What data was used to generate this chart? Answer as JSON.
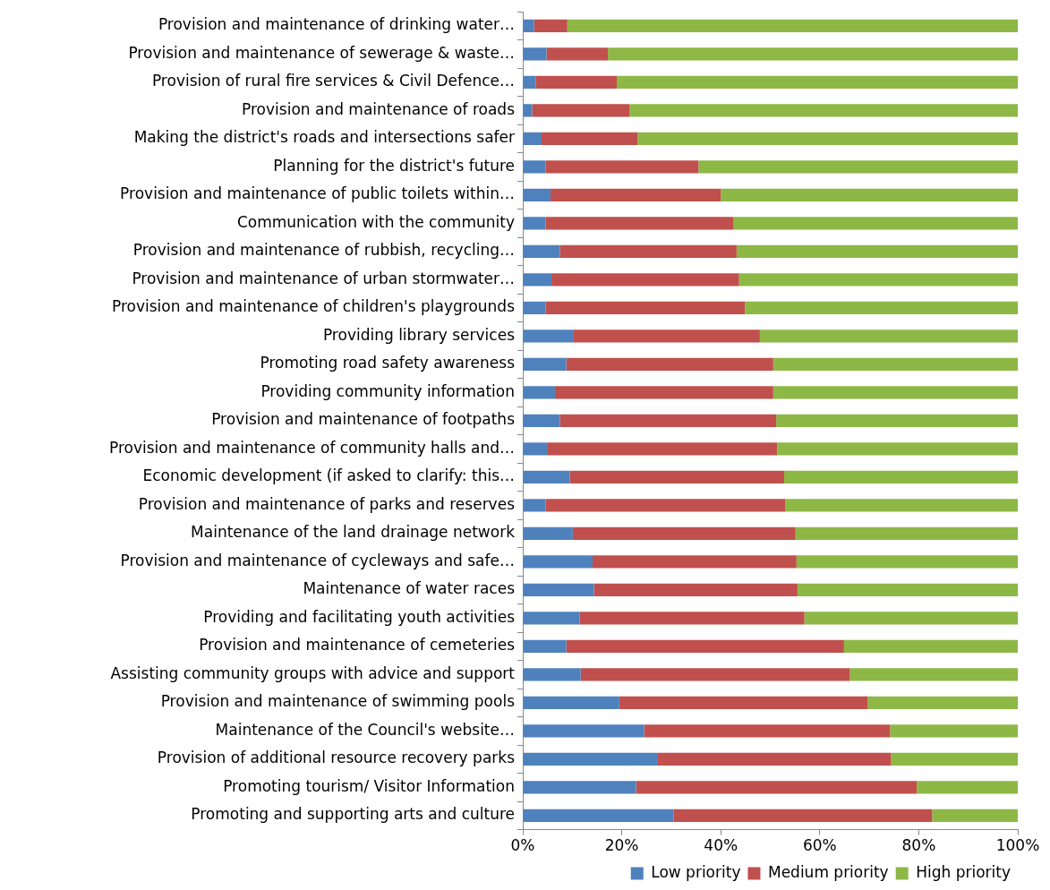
{
  "chart_data": {
    "type": "bar",
    "orientation": "horizontal",
    "stacked": true,
    "legend": "bottom right",
    "grid": false,
    "categories": [
      "Provision and maintenance of drinking water…",
      "Provision and maintenance of sewerage & waste…",
      "Provision of rural fire services & Civil Defence…",
      "Provision and maintenance of roads",
      "Making the district's roads and intersections safer",
      "Planning for the district's future",
      "Provision and maintenance of public toilets within…",
      "Communication with the community",
      "Provision and maintenance of rubbish, recycling…",
      "Provision and maintenance of urban stormwater…",
      "Provision and maintenance of children's playgrounds",
      "Providing library services",
      "Promoting road safety awareness",
      "Providing community information",
      "Provision and maintenance of footpaths",
      "Provision and maintenance of community halls and…",
      "Economic development (if asked to clarify: this…",
      "Provision and maintenance of parks and reserves",
      "Maintenance of the land drainage network",
      "Provision and maintenance of cycleways and safe…",
      "Maintenance of water races",
      "Providing and facilitating youth activities",
      "Provision and maintenance of cemeteries",
      "Assisting community groups with advice and support",
      "Provision and maintenance of swimming pools",
      "Maintenance of the Council's website…",
      "Provision of additional resource recovery parks",
      "Promoting tourism/ Visitor Information",
      "Promoting and supporting arts and culture"
    ],
    "xlim": [
      0,
      100
    ],
    "xticks": [
      {
        "value": 0,
        "label": "0%"
      },
      {
        "value": 20,
        "label": "20%"
      },
      {
        "value": 40,
        "label": "40%"
      },
      {
        "value": 60,
        "label": "60%"
      },
      {
        "value": 80,
        "label": "80%"
      },
      {
        "value": 100,
        "label": "100%"
      }
    ],
    "series": [
      {
        "name": "Low priority",
        "color": "#4f81bd",
        "values": [
          2.3,
          4.8,
          2.6,
          1.9,
          3.8,
          4.6,
          5.6,
          4.6,
          7.5,
          5.8,
          4.6,
          10.3,
          8.8,
          6.5,
          7.5,
          4.9,
          9.5,
          4.6,
          10.1,
          14.1,
          14.4,
          11.5,
          8.8,
          11.7,
          19.5,
          24.5,
          27.3,
          22.9,
          30.5
        ]
      },
      {
        "name": "Medium priority",
        "color": "#c0504d",
        "values": [
          6.7,
          12.4,
          16.4,
          19.7,
          19.4,
          30.9,
          34.4,
          38.0,
          35.7,
          37.9,
          40.3,
          37.6,
          41.8,
          44.1,
          43.7,
          46.5,
          43.3,
          48.4,
          45.0,
          41.2,
          41.1,
          45.4,
          56.1,
          54.4,
          50.2,
          49.7,
          47.1,
          56.7,
          52.2
        ]
      },
      {
        "name": "High priority",
        "color": "#8db845",
        "values": [
          91.0,
          82.8,
          81.0,
          78.4,
          76.8,
          64.5,
          60.0,
          57.4,
          56.8,
          56.3,
          55.1,
          52.1,
          49.4,
          49.4,
          48.8,
          48.6,
          47.2,
          47.0,
          44.9,
          44.7,
          44.5,
          43.1,
          35.1,
          33.9,
          30.3,
          25.8,
          25.6,
          20.4,
          17.3
        ]
      }
    ]
  }
}
